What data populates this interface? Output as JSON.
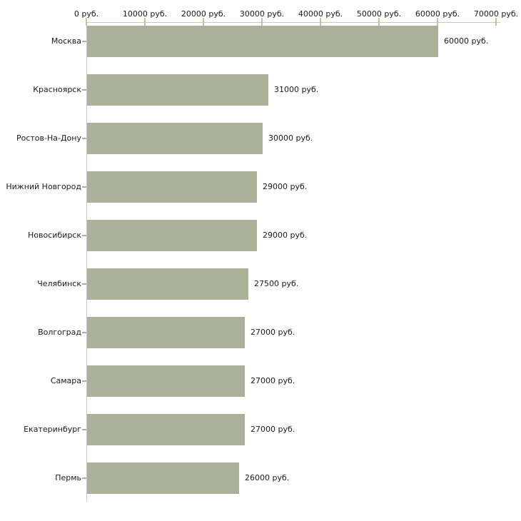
{
  "chart_data": {
    "type": "bar",
    "orientation": "horizontal",
    "title": "",
    "xlabel": "",
    "ylabel": "",
    "unit": "руб.",
    "categories": [
      "Москва",
      "Красноярск",
      "Ростов-На-Дону",
      "Нижний Новгород",
      "Новосибирск",
      "Челябинск",
      "Волгоград",
      "Самара",
      "Екатеринбург",
      "Пермь"
    ],
    "values": [
      60000,
      31000,
      30000,
      29000,
      29000,
      27500,
      27000,
      27000,
      27000,
      26000
    ],
    "value_labels": [
      "60000 руб.",
      "31000 руб.",
      "30000 руб.",
      "29000 руб.",
      "29000 руб.",
      "27500 руб.",
      "27000 руб.",
      "27000 руб.",
      "27000 руб.",
      "26000 руб."
    ],
    "x_axis": {
      "position": "top",
      "range": [
        0,
        70000
      ],
      "ticks": [
        0,
        10000,
        20000,
        30000,
        40000,
        50000,
        60000,
        70000
      ],
      "tick_labels": [
        "0 руб.",
        "10000 руб.",
        "20000 руб.",
        "30000 руб.",
        "40000 руб.",
        "50000 руб.",
        "60000 руб.",
        "70000 руб."
      ]
    },
    "grid": false,
    "legend": "none",
    "colors": {
      "bar": "#aab198",
      "axis_line": "#c9c9c9",
      "x_tick": "#c3c39b",
      "y_tick": "#c79f9f",
      "text": "#1a1a1a",
      "background": "#ffffff"
    }
  }
}
